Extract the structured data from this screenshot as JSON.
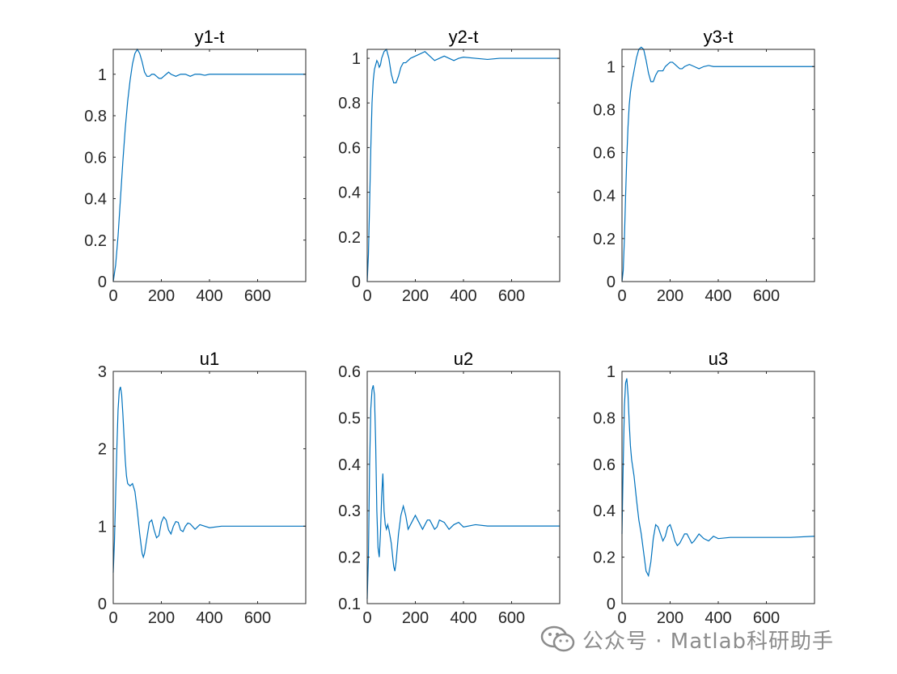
{
  "colors": {
    "series": "#0072BD",
    "axis": "#262626",
    "watermark": "#8c8c8c"
  },
  "watermark": {
    "text": "公众号 · Matlab科研助手",
    "icon": "wechat-icon"
  },
  "chart_data": [
    {
      "type": "line",
      "title": "y1-t",
      "xlabel": "",
      "ylabel": "",
      "xlim": [
        0,
        800
      ],
      "ylim": [
        0,
        1.12
      ],
      "xticks": [
        0,
        200,
        400,
        600
      ],
      "xtick_labels": [
        "0",
        "200",
        "400",
        "600"
      ],
      "yticks": [
        0,
        0.2,
        0.4,
        0.6,
        0.8,
        1
      ],
      "ytick_labels": [
        "0",
        "0.2",
        "0.4",
        "0.6",
        "0.8",
        "1"
      ],
      "grid": false,
      "x": [
        0,
        10,
        20,
        30,
        40,
        50,
        60,
        70,
        80,
        90,
        100,
        110,
        120,
        130,
        140,
        150,
        160,
        170,
        180,
        190,
        200,
        210,
        220,
        230,
        240,
        260,
        280,
        300,
        320,
        340,
        360,
        380,
        400,
        450,
        500,
        550,
        600,
        650,
        700,
        800
      ],
      "y": [
        0,
        0.08,
        0.22,
        0.4,
        0.58,
        0.74,
        0.87,
        0.97,
        1.05,
        1.1,
        1.12,
        1.1,
        1.06,
        1.01,
        0.99,
        0.99,
        1.0,
        1.0,
        0.99,
        0.98,
        0.98,
        0.99,
        1.0,
        1.01,
        1.0,
        0.99,
        1.0,
        1.0,
        0.99,
        1.0,
        1.0,
        0.995,
        1.0,
        1.0,
        1.0,
        1.0,
        1.0,
        1.0,
        1.0,
        1.0
      ]
    },
    {
      "type": "line",
      "title": "y2-t",
      "xlabel": "",
      "ylabel": "",
      "xlim": [
        0,
        800
      ],
      "ylim": [
        0,
        1.04
      ],
      "xticks": [
        0,
        200,
        400,
        600
      ],
      "xtick_labels": [
        "0",
        "200",
        "400",
        "600"
      ],
      "yticks": [
        0,
        0.2,
        0.4,
        0.6,
        0.8,
        1
      ],
      "ytick_labels": [
        "0",
        "0.2",
        "0.4",
        "0.6",
        "0.8",
        "1"
      ],
      "grid": false,
      "x": [
        0,
        5,
        10,
        15,
        20,
        25,
        30,
        35,
        40,
        45,
        50,
        55,
        60,
        70,
        80,
        90,
        100,
        110,
        120,
        130,
        140,
        150,
        160,
        170,
        180,
        200,
        220,
        240,
        260,
        280,
        300,
        320,
        340,
        360,
        380,
        400,
        450,
        500,
        550,
        600,
        650,
        700,
        800
      ],
      "y": [
        0,
        0.12,
        0.35,
        0.6,
        0.8,
        0.9,
        0.95,
        0.97,
        0.99,
        0.98,
        0.96,
        0.97,
        1.0,
        1.03,
        1.04,
        1.0,
        0.93,
        0.89,
        0.89,
        0.92,
        0.96,
        0.98,
        0.98,
        0.99,
        1.0,
        1.01,
        1.02,
        1.03,
        1.01,
        0.99,
        1.0,
        1.01,
        1.0,
        0.99,
        1.0,
        1.005,
        1.0,
        0.995,
        1.0,
        1.0,
        1.0,
        1.0,
        1.0
      ]
    },
    {
      "type": "line",
      "title": "y3-t",
      "xlabel": "",
      "ylabel": "",
      "xlim": [
        0,
        800
      ],
      "ylim": [
        0,
        1.08
      ],
      "xticks": [
        0,
        200,
        400,
        600
      ],
      "xtick_labels": [
        "0",
        "200",
        "400",
        "600"
      ],
      "yticks": [
        0,
        0.2,
        0.4,
        0.6,
        0.8,
        1
      ],
      "ytick_labels": [
        "0",
        "0.2",
        "0.4",
        "0.6",
        "0.8",
        "1"
      ],
      "grid": false,
      "x": [
        0,
        5,
        10,
        15,
        20,
        25,
        30,
        35,
        40,
        45,
        50,
        60,
        70,
        80,
        90,
        100,
        110,
        120,
        130,
        140,
        150,
        160,
        170,
        180,
        190,
        200,
        210,
        220,
        230,
        240,
        250,
        260,
        280,
        300,
        320,
        340,
        360,
        380,
        400,
        450,
        500,
        550,
        600,
        650,
        700,
        800
      ],
      "y": [
        0,
        0.05,
        0.2,
        0.4,
        0.58,
        0.72,
        0.82,
        0.88,
        0.92,
        0.95,
        0.98,
        1.04,
        1.08,
        1.09,
        1.08,
        1.03,
        0.97,
        0.93,
        0.93,
        0.96,
        0.98,
        0.98,
        0.98,
        1.0,
        1.01,
        1.02,
        1.02,
        1.01,
        1.0,
        0.99,
        0.99,
        1.0,
        1.01,
        1.0,
        0.99,
        1.0,
        1.005,
        1.0,
        1.0,
        1.0,
        1.0,
        1.0,
        1.0,
        1.0,
        1.0,
        1.0
      ]
    },
    {
      "type": "line",
      "title": "u1",
      "xlabel": "",
      "ylabel": "",
      "xlim": [
        0,
        800
      ],
      "ylim": [
        0,
        3
      ],
      "xticks": [
        0,
        200,
        400,
        600
      ],
      "xtick_labels": [
        "0",
        "200",
        "400",
        "600"
      ],
      "yticks": [
        0,
        1,
        2,
        3
      ],
      "ytick_labels": [
        "0",
        "1",
        "2",
        "3"
      ],
      "grid": false,
      "x": [
        0,
        5,
        10,
        15,
        20,
        25,
        30,
        35,
        40,
        45,
        50,
        55,
        60,
        70,
        80,
        90,
        100,
        110,
        120,
        125,
        130,
        140,
        150,
        160,
        170,
        180,
        190,
        200,
        210,
        220,
        230,
        240,
        250,
        260,
        270,
        280,
        290,
        300,
        310,
        320,
        340,
        360,
        380,
        400,
        450,
        500,
        550,
        600,
        700,
        800
      ],
      "y": [
        0.4,
        0.8,
        1.4,
        2.0,
        2.5,
        2.75,
        2.8,
        2.7,
        2.45,
        2.15,
        1.85,
        1.65,
        1.55,
        1.52,
        1.55,
        1.45,
        1.2,
        0.9,
        0.65,
        0.6,
        0.65,
        0.85,
        1.05,
        1.08,
        0.95,
        0.85,
        0.88,
        1.05,
        1.12,
        1.08,
        0.95,
        0.9,
        1.0,
        1.06,
        1.05,
        0.95,
        0.93,
        1.0,
        1.04,
        1.03,
        0.96,
        1.02,
        1.0,
        0.98,
        1.0,
        1.0,
        1.0,
        1.0,
        1.0,
        1.0
      ]
    },
    {
      "type": "line",
      "title": "u2",
      "xlabel": "",
      "ylabel": "",
      "xlim": [
        0,
        800
      ],
      "ylim": [
        0.1,
        0.6
      ],
      "xticks": [
        0,
        200,
        400,
        600
      ],
      "xtick_labels": [
        "0",
        "200",
        "400",
        "600"
      ],
      "yticks": [
        0.1,
        0.2,
        0.3,
        0.4,
        0.5,
        0.6
      ],
      "ytick_labels": [
        "0.1",
        "0.2",
        "0.3",
        "0.4",
        "0.5",
        "0.6"
      ],
      "grid": false,
      "x": [
        0,
        5,
        10,
        15,
        20,
        25,
        30,
        35,
        40,
        45,
        50,
        55,
        60,
        65,
        70,
        75,
        80,
        85,
        90,
        100,
        110,
        115,
        120,
        130,
        140,
        150,
        160,
        170,
        180,
        190,
        200,
        210,
        220,
        230,
        240,
        250,
        260,
        270,
        280,
        290,
        300,
        320,
        340,
        360,
        380,
        400,
        450,
        500,
        550,
        600,
        700,
        800
      ],
      "y": [
        0.11,
        0.2,
        0.4,
        0.52,
        0.56,
        0.57,
        0.55,
        0.45,
        0.3,
        0.22,
        0.2,
        0.25,
        0.33,
        0.38,
        0.3,
        0.27,
        0.26,
        0.27,
        0.26,
        0.23,
        0.18,
        0.17,
        0.19,
        0.25,
        0.29,
        0.31,
        0.29,
        0.26,
        0.27,
        0.28,
        0.29,
        0.28,
        0.27,
        0.26,
        0.27,
        0.28,
        0.28,
        0.27,
        0.26,
        0.265,
        0.28,
        0.275,
        0.26,
        0.27,
        0.275,
        0.265,
        0.27,
        0.267,
        0.267,
        0.267,
        0.267,
        0.267
      ]
    },
    {
      "type": "line",
      "title": "u3",
      "xlabel": "",
      "ylabel": "",
      "xlim": [
        0,
        800
      ],
      "ylim": [
        0,
        1
      ],
      "xticks": [
        0,
        200,
        400,
        600
      ],
      "xtick_labels": [
        "0",
        "200",
        "400",
        "600"
      ],
      "yticks": [
        0,
        0.2,
        0.4,
        0.6,
        0.8,
        1
      ],
      "ytick_labels": [
        "0",
        "0.2",
        "0.4",
        "0.6",
        "0.8",
        "1"
      ],
      "grid": false,
      "x": [
        0,
        5,
        10,
        15,
        20,
        25,
        30,
        35,
        40,
        50,
        60,
        70,
        80,
        90,
        100,
        110,
        120,
        130,
        140,
        150,
        160,
        170,
        180,
        190,
        200,
        210,
        220,
        230,
        240,
        250,
        260,
        270,
        280,
        290,
        300,
        320,
        340,
        360,
        380,
        400,
        450,
        500,
        550,
        600,
        700,
        800
      ],
      "y": [
        0.3,
        0.6,
        0.85,
        0.95,
        0.97,
        0.9,
        0.78,
        0.68,
        0.62,
        0.55,
        0.45,
        0.36,
        0.3,
        0.22,
        0.14,
        0.12,
        0.18,
        0.28,
        0.34,
        0.33,
        0.3,
        0.27,
        0.29,
        0.33,
        0.34,
        0.31,
        0.27,
        0.25,
        0.26,
        0.28,
        0.3,
        0.3,
        0.28,
        0.26,
        0.27,
        0.3,
        0.28,
        0.27,
        0.29,
        0.28,
        0.285,
        0.285,
        0.285,
        0.285,
        0.285,
        0.29
      ]
    }
  ]
}
